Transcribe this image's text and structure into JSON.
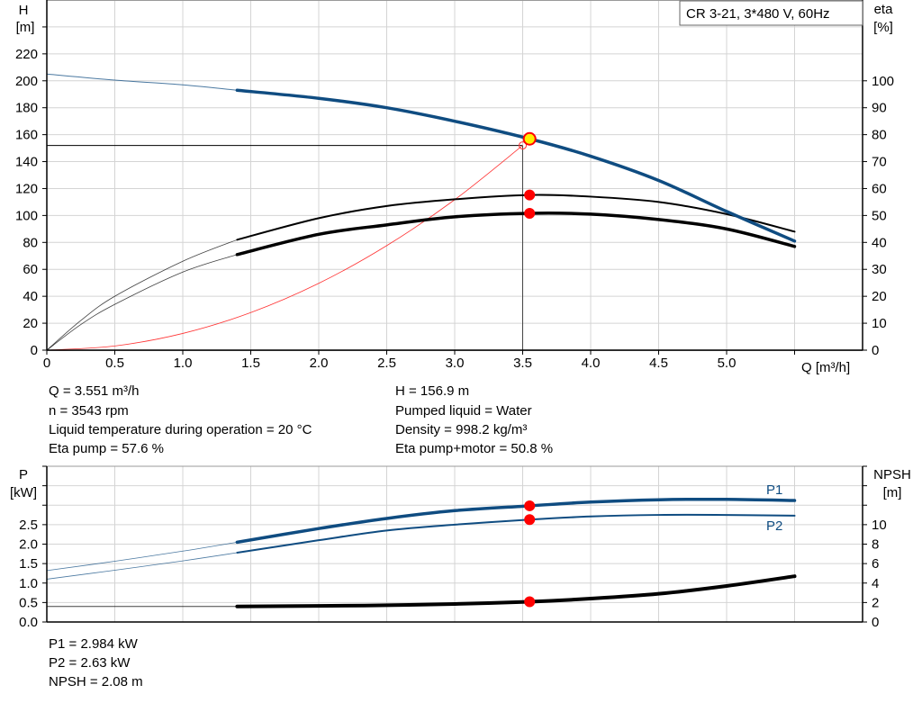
{
  "title_box": "CR 3-21, 3*480 V, 60Hz",
  "colors": {
    "head": "#0f4c81",
    "efficiency": "#000000",
    "system": "#ff3333",
    "duty_point": "#ffee00",
    "marker": "#ff0000",
    "grid": "#d4d4d4"
  },
  "chart_data": [
    {
      "type": "line",
      "xlabel": "Q [m³/h]",
      "ylabel": "H",
      "ylabel_unit": "[m]",
      "y2label": "eta",
      "y2label_unit": "[%]",
      "xlim": [
        0,
        6
      ],
      "ylim": [
        0,
        260
      ],
      "y2lim": [
        0,
        130
      ],
      "grid": true,
      "xticks": [
        "0",
        "0.5",
        "1.0",
        "1.5",
        "2.0",
        "2.5",
        "3.0",
        "3.5",
        "4.0",
        "4.5",
        "5.0"
      ],
      "yticks": [
        "0",
        "20",
        "40",
        "60",
        "80",
        "100",
        "120",
        "140",
        "160",
        "180",
        "200",
        "220"
      ],
      "y2ticks": [
        "0",
        "10",
        "20",
        "30",
        "40",
        "50",
        "60",
        "70",
        "80",
        "90",
        "100"
      ],
      "series": [
        {
          "key": "H",
          "axis": "left",
          "x": [
            0,
            0.5,
            1.0,
            1.4,
            2.0,
            2.5,
            3.0,
            3.551,
            4.0,
            4.5,
            5.0,
            5.5
          ],
          "y": [
            205,
            200.5,
            197,
            193,
            187,
            180,
            170,
            156.9,
            144,
            126,
            103,
            81
          ],
          "operating_from": 1.4
        },
        {
          "key": "eta_pump",
          "axis": "right",
          "x": [
            0,
            0.25,
            0.5,
            1.0,
            1.4,
            2.0,
            2.5,
            3.0,
            3.551,
            4.0,
            4.5,
            5.0,
            5.5
          ],
          "y": [
            0,
            11,
            20,
            33,
            41,
            49,
            53.5,
            56,
            57.6,
            57,
            55,
            50.5,
            44
          ],
          "operating_from": 1.4
        },
        {
          "key": "eta_pump_motor",
          "axis": "right",
          "x": [
            0,
            0.25,
            0.5,
            1.0,
            1.4,
            2.0,
            2.5,
            3.0,
            3.551,
            4.0,
            4.5,
            5.0,
            5.5
          ],
          "y": [
            0,
            9.5,
            17,
            29,
            35.5,
            43,
            46.5,
            49.5,
            50.8,
            50.5,
            48.5,
            45,
            38.5
          ],
          "operating_from": 1.4
        },
        {
          "key": "system_curve",
          "axis": "left",
          "x": [
            0,
            0.5,
            1.0,
            1.5,
            2.0,
            2.5,
            3.0,
            3.5
          ],
          "y": [
            0,
            3.1,
            12.4,
            27.9,
            49.6,
            77.6,
            111.7,
            152
          ]
        }
      ],
      "reference_lines": {
        "H": 152,
        "Q": 3.5
      },
      "duty_point": {
        "Q": 3.551,
        "H": 156.9,
        "eta_pump": 57.6,
        "eta_pump_motor": 50.8
      }
    },
    {
      "type": "line",
      "ylabel": "P",
      "ylabel_unit": "[kW]",
      "y2label": "NPSH",
      "y2label_unit": "[m]",
      "xlim": [
        0,
        6
      ],
      "ylim": [
        0,
        4
      ],
      "y2lim": [
        0,
        16
      ],
      "grid": true,
      "yticks": [
        "0.0",
        "0.5",
        "1.0",
        "1.5",
        "2.0",
        "2.5"
      ],
      "y2ticks": [
        "0",
        "2",
        "4",
        "6",
        "8",
        "10"
      ],
      "series": [
        {
          "key": "P1",
          "name": "P1",
          "axis": "left",
          "x": [
            0,
            0.5,
            1.0,
            1.4,
            2.0,
            2.5,
            3.0,
            3.551,
            4.0,
            4.5,
            5.0,
            5.5
          ],
          "y": [
            1.32,
            1.56,
            1.82,
            2.05,
            2.4,
            2.66,
            2.86,
            2.984,
            3.08,
            3.14,
            3.15,
            3.12
          ],
          "operating_from": 1.4
        },
        {
          "key": "P2",
          "name": "P2",
          "axis": "left",
          "x": [
            0,
            0.5,
            1.0,
            1.4,
            2.0,
            2.5,
            3.0,
            3.551,
            4.0,
            4.5,
            5.0,
            5.5
          ],
          "y": [
            1.1,
            1.33,
            1.57,
            1.78,
            2.1,
            2.35,
            2.5,
            2.63,
            2.71,
            2.75,
            2.75,
            2.73
          ],
          "operating_from": 1.4
        },
        {
          "key": "NPSH",
          "axis": "right",
          "x": [
            0,
            0.5,
            1.0,
            1.4,
            2.0,
            2.5,
            3.0,
            3.551,
            4.0,
            4.5,
            5.0,
            5.5
          ],
          "y": [
            1.6,
            1.6,
            1.6,
            1.6,
            1.65,
            1.72,
            1.85,
            2.08,
            2.4,
            2.9,
            3.7,
            4.7
          ],
          "operating_from": 1.4
        }
      ],
      "duty_point": {
        "Q": 3.551,
        "P1": 2.984,
        "P2": 2.63,
        "NPSH": 2.08
      }
    }
  ],
  "info_top": {
    "left": [
      "Q = 3.551 m³/h",
      "n = 3543 rpm",
      "Liquid temperature during operation = 20 °C",
      "Eta pump = 57.6 %"
    ],
    "right": [
      "H = 156.9 m",
      "Pumped liquid = Water",
      "Density = 998.2 kg/m³",
      "Eta pump+motor = 50.8 %"
    ]
  },
  "info_bottom": [
    "P1 = 2.984 kW",
    "P2 = 2.63 kW",
    "NPSH = 2.08 m"
  ]
}
